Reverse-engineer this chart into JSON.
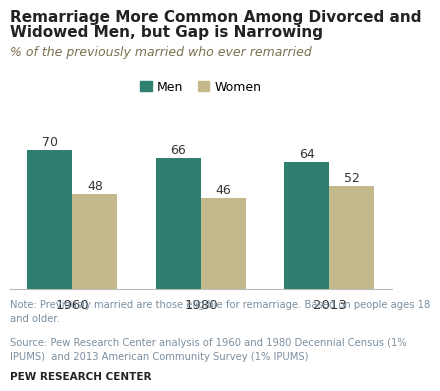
{
  "title_line1": "Remarriage More Common Among Divorced and",
  "title_line2": "Widowed Men, but Gap is Narrowing",
  "subtitle": "% of the previously married who ever remarried",
  "categories": [
    "1960",
    "1980",
    "2013"
  ],
  "men_values": [
    70,
    66,
    64
  ],
  "women_values": [
    48,
    46,
    52
  ],
  "men_color": "#2E7F6F",
  "women_color": "#C4B98A",
  "bar_width": 0.35,
  "ylim": [
    0,
    85
  ],
  "legend_labels": [
    "Men",
    "Women"
  ],
  "note_text": "Note: Previously married are those eligible for remarriage. Based on people ages 18\nand older.",
  "source_text": "Source: Pew Research Center analysis of 1960 and 1980 Decennial Census (1%\nIPUMS)  and 2013 American Community Survey (1% IPUMS)",
  "pew_label": "PEW RESEARCH CENTER",
  "title_fontsize": 11.0,
  "subtitle_fontsize": 9.0,
  "label_fontsize": 9.0,
  "tick_fontsize": 9.5,
  "note_fontsize": 7.2,
  "bg_color": "#FFFFFF",
  "note_color": "#7B8FA0",
  "source_color": "#7B8FA0",
  "pew_color": "#222222",
  "title_color": "#222222",
  "subtitle_color": "#7B6F4E"
}
